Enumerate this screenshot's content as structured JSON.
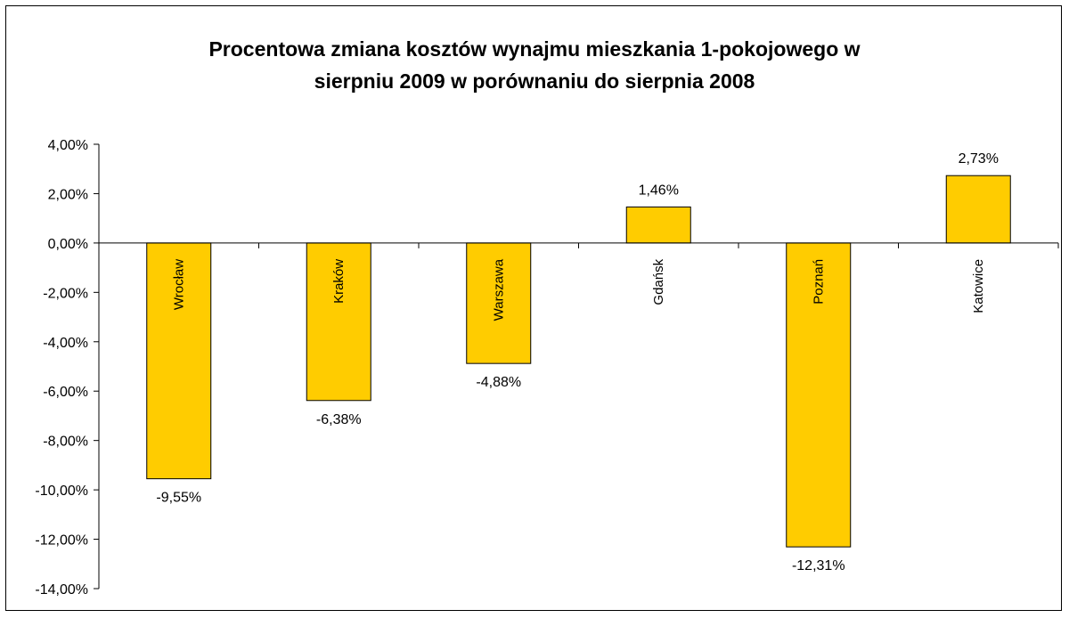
{
  "chart_data": {
    "type": "bar",
    "title_lines": [
      "Procentowa zmiana kosztów wynajmu mieszkania 1-pokojowego w",
      "sierpniu 2009 w porównaniu do sierpnia 2008"
    ],
    "categories": [
      "Wrocław",
      "Kraków",
      "Warszawa",
      "Gdańsk",
      "Poznań",
      "Katowice"
    ],
    "values": [
      -9.55,
      -6.38,
      -4.88,
      1.46,
      -12.31,
      2.73
    ],
    "data_labels": [
      "-9,55%",
      "-6,38%",
      "-4,88%",
      "1,46%",
      "-12,31%",
      "2,73%"
    ],
    "ylim": [
      -14,
      4
    ],
    "yticks": [
      4,
      2,
      0,
      -2,
      -4,
      -6,
      -8,
      -10,
      -12,
      -14
    ],
    "ytick_labels": [
      "4,00%",
      "2,00%",
      "0,00%",
      "-2,00%",
      "-4,00%",
      "-6,00%",
      "-8,00%",
      "-10,00%",
      "-12,00%",
      "-14,00%"
    ],
    "xlabel": "",
    "ylabel": "",
    "grid": false,
    "legend": "none",
    "colors": {
      "bar_fill": "#FFCC00",
      "bar_stroke": "#000000",
      "axis": "#000000"
    }
  }
}
